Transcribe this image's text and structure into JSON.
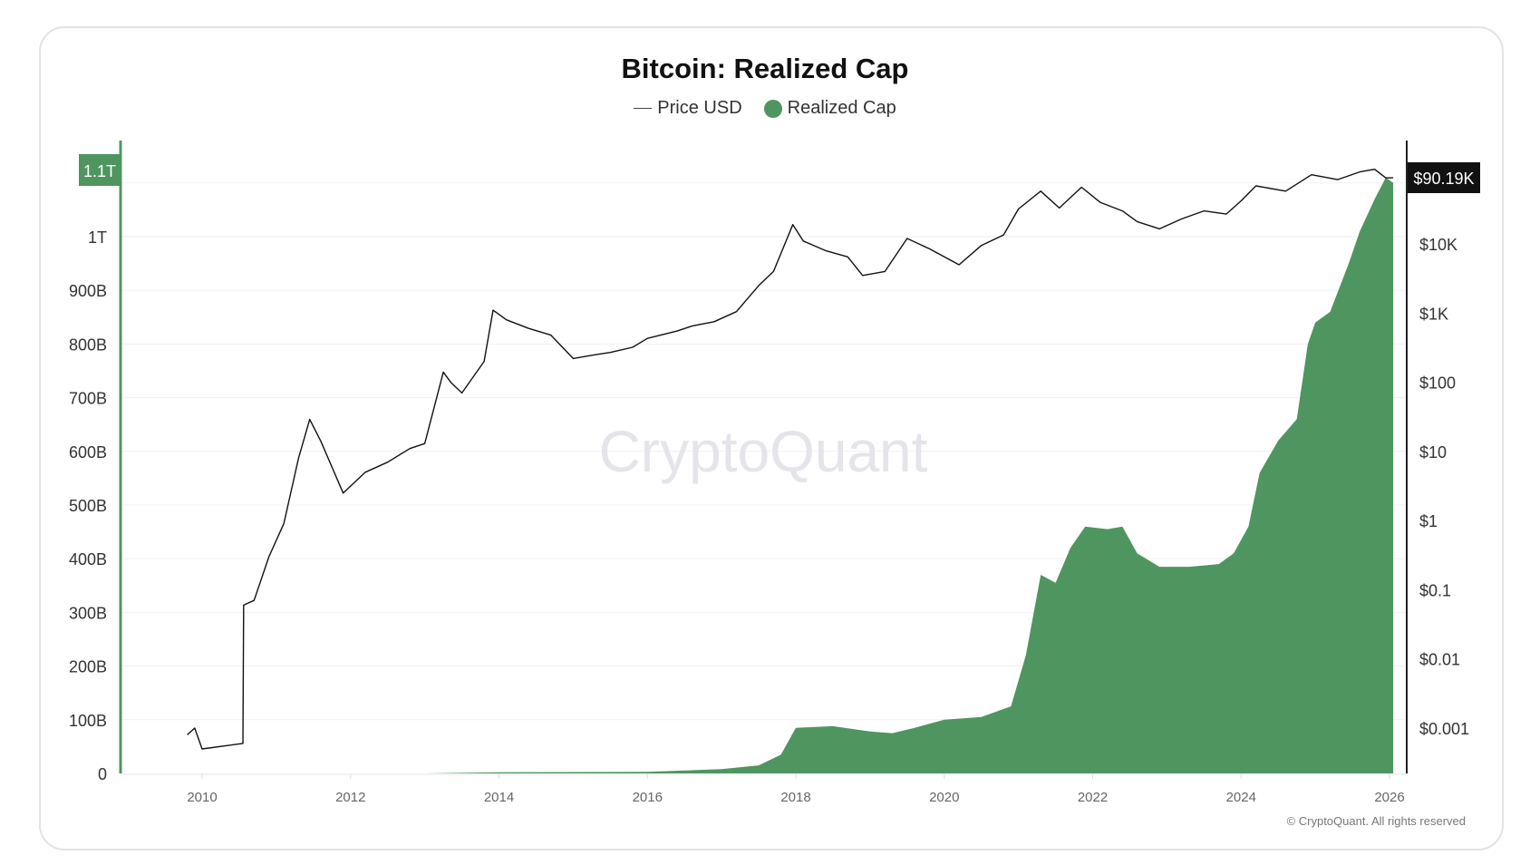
{
  "chart_data": {
    "type": "area+line",
    "title": "Bitcoin: Realized Cap",
    "legend": [
      "Price USD",
      "Realized Cap"
    ],
    "legend_placement": "top-center",
    "colors": {
      "realized_cap": "#4f9560",
      "price": "#111111"
    },
    "x_ticks": [
      "2010",
      "2012",
      "2014",
      "2016",
      "2018",
      "2020",
      "2022",
      "2024",
      "2026"
    ],
    "xlim": [
      2009,
      2026.1
    ],
    "left_axis": {
      "ticks": [
        "0",
        "100B",
        "200B",
        "300B",
        "400B",
        "500B",
        "600B",
        "700B",
        "800B",
        "900B",
        "1T"
      ],
      "tick_values": [
        0,
        100,
        200,
        300,
        400,
        500,
        600,
        700,
        800,
        900,
        1000
      ],
      "unit": "B",
      "range": [
        0,
        1135
      ],
      "current_label": "1.1T"
    },
    "right_axis": {
      "scale": "log",
      "ticks": [
        "$0.001",
        "$0.01",
        "$0.1",
        "$1",
        "$10",
        "$100",
        "$1K",
        "$10K"
      ],
      "tick_values": [
        0.001,
        0.01,
        0.1,
        1,
        10,
        100,
        1000,
        10000
      ],
      "current_label": "$90.19K"
    },
    "grid": true,
    "watermark": "CryptoQuant",
    "series": [
      {
        "name": "Realized Cap",
        "axis": "left",
        "type": "area",
        "x": [
          2009.8,
          2013.0,
          2014.0,
          2016.0,
          2017.0,
          2017.5,
          2017.8,
          2018.0,
          2018.5,
          2019.0,
          2019.3,
          2019.6,
          2020.0,
          2020.5,
          2020.9,
          2021.1,
          2021.3,
          2021.5,
          2021.7,
          2021.9,
          2022.2,
          2022.4,
          2022.6,
          2022.9,
          2023.3,
          2023.7,
          2023.9,
          2024.1,
          2024.25,
          2024.5,
          2024.75,
          2024.9,
          2025.0,
          2025.2,
          2025.45,
          2025.6,
          2025.8,
          2025.95,
          2026.05
        ],
        "values": [
          0,
          0,
          2,
          3,
          8,
          15,
          35,
          85,
          88,
          78,
          75,
          85,
          100,
          105,
          125,
          220,
          370,
          355,
          420,
          460,
          455,
          460,
          410,
          385,
          385,
          390,
          410,
          460,
          560,
          620,
          660,
          800,
          840,
          860,
          950,
          1010,
          1070,
          1110,
          1100
        ]
      },
      {
        "name": "Price USD",
        "axis": "right",
        "type": "line",
        "x": [
          2009.8,
          2009.9,
          2010.0,
          2010.55,
          2010.56,
          2010.7,
          2010.9,
          2011.1,
          2011.3,
          2011.45,
          2011.6,
          2011.9,
          2012.2,
          2012.5,
          2012.8,
          2013.0,
          2013.25,
          2013.35,
          2013.5,
          2013.8,
          2013.92,
          2014.1,
          2014.4,
          2014.7,
          2015.0,
          2015.3,
          2015.5,
          2015.8,
          2016.0,
          2016.4,
          2016.6,
          2016.9,
          2017.2,
          2017.5,
          2017.7,
          2017.96,
          2018.1,
          2018.4,
          2018.7,
          2018.9,
          2019.2,
          2019.5,
          2019.8,
          2020.2,
          2020.5,
          2020.8,
          2021.0,
          2021.3,
          2021.55,
          2021.85,
          2022.1,
          2022.4,
          2022.6,
          2022.9,
          2023.2,
          2023.5,
          2023.8,
          2024.0,
          2024.2,
          2024.6,
          2024.95,
          2025.3,
          2025.6,
          2025.8,
          2025.95,
          2026.05
        ],
        "values": [
          0.0008,
          0.001,
          0.0005,
          0.0006,
          0.06,
          0.07,
          0.3,
          0.9,
          8,
          29,
          14,
          2.5,
          5,
          7,
          11,
          13,
          140,
          100,
          70,
          200,
          1100,
          800,
          600,
          480,
          220,
          250,
          270,
          320,
          430,
          550,
          650,
          750,
          1050,
          2500,
          4000,
          19000,
          11000,
          8000,
          6500,
          3500,
          4000,
          12000,
          8500,
          5000,
          9500,
          13500,
          32000,
          58000,
          33000,
          66000,
          40000,
          30000,
          21000,
          16500,
          23000,
          30000,
          27000,
          42000,
          69000,
          58000,
          100000,
          85000,
          110000,
          120000,
          90000,
          90190
        ]
      }
    ]
  },
  "footer": {
    "copyright": "© CryptoQuant. All rights reserved"
  }
}
